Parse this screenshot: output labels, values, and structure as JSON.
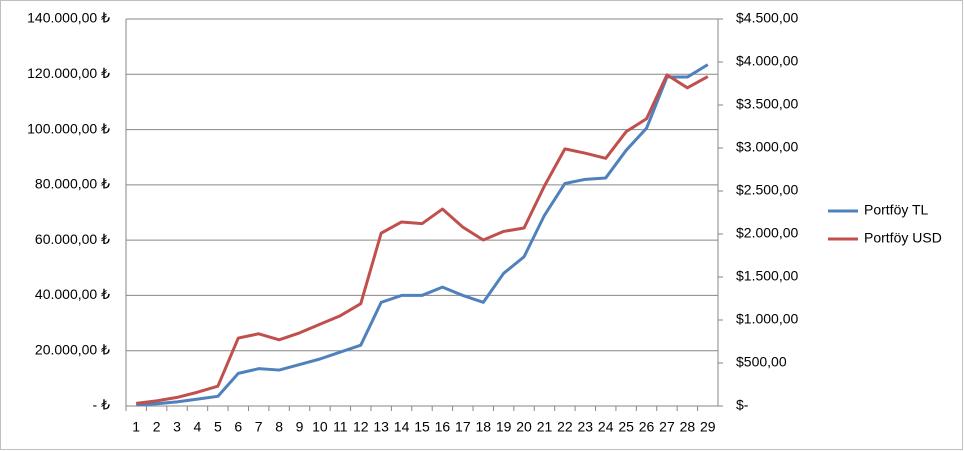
{
  "chart_data": {
    "type": "line",
    "categories": [
      "1",
      "2",
      "3",
      "4",
      "5",
      "6",
      "7",
      "8",
      "9",
      "10",
      "11",
      "12",
      "13",
      "14",
      "15",
      "16",
      "17",
      "18",
      "19",
      "20",
      "21",
      "22",
      "23",
      "24",
      "25",
      "26",
      "27",
      "28",
      "29"
    ],
    "series": [
      {
        "name": "Portföy TL",
        "color": "#4f81bd",
        "values": [
          500,
          800,
          1500,
          2500,
          3500,
          11800,
          13500,
          13000,
          15000,
          17000,
          19500,
          22000,
          37500,
          40000,
          40000,
          43000,
          40000,
          37500,
          48000,
          54000,
          69000,
          80500,
          82000,
          82500,
          92500,
          100500,
          119000,
          119000,
          123500
        ]
      },
      {
        "name": "Portföy USD",
        "color": "#c0504d",
        "axis": "y2",
        "values": [
          30,
          60,
          100,
          160,
          230,
          790,
          840,
          770,
          850,
          950,
          1050,
          1190,
          2010,
          2140,
          2120,
          2290,
          2080,
          1930,
          2030,
          2070,
          2560,
          2990,
          2940,
          2880,
          3190,
          3340,
          3850,
          3700,
          3830
        ]
      }
    ],
    "ylim": [
      0,
      140000
    ],
    "yticks": [
      {
        "value": 0,
        "label": "-  ₺"
      },
      {
        "value": 20000,
        "label": "20.000,00 ₺"
      },
      {
        "value": 40000,
        "label": "40.000,00 ₺"
      },
      {
        "value": 60000,
        "label": "60.000,00 ₺"
      },
      {
        "value": 80000,
        "label": "80.000,00 ₺"
      },
      {
        "value": 100000,
        "label": "100.000,00 ₺"
      },
      {
        "value": 120000,
        "label": "120.000,00 ₺"
      },
      {
        "value": 140000,
        "label": "140.000,00 ₺"
      }
    ],
    "y2lim": [
      0,
      4500
    ],
    "y2ticks": [
      {
        "value": 0,
        "label": "$-"
      },
      {
        "value": 500,
        "label": "$500,00"
      },
      {
        "value": 1000,
        "label": "$1.000,00"
      },
      {
        "value": 1500,
        "label": "$1.500,00"
      },
      {
        "value": 2000,
        "label": "$2.000,00"
      },
      {
        "value": 2500,
        "label": "$2.500,00"
      },
      {
        "value": 3000,
        "label": "$3.000,00"
      },
      {
        "value": 3500,
        "label": "$3.500,00"
      },
      {
        "value": 4000,
        "label": "$4.000,00"
      },
      {
        "value": 4500,
        "label": "$4.500,00"
      }
    ],
    "grid": true,
    "legend": "right"
  }
}
